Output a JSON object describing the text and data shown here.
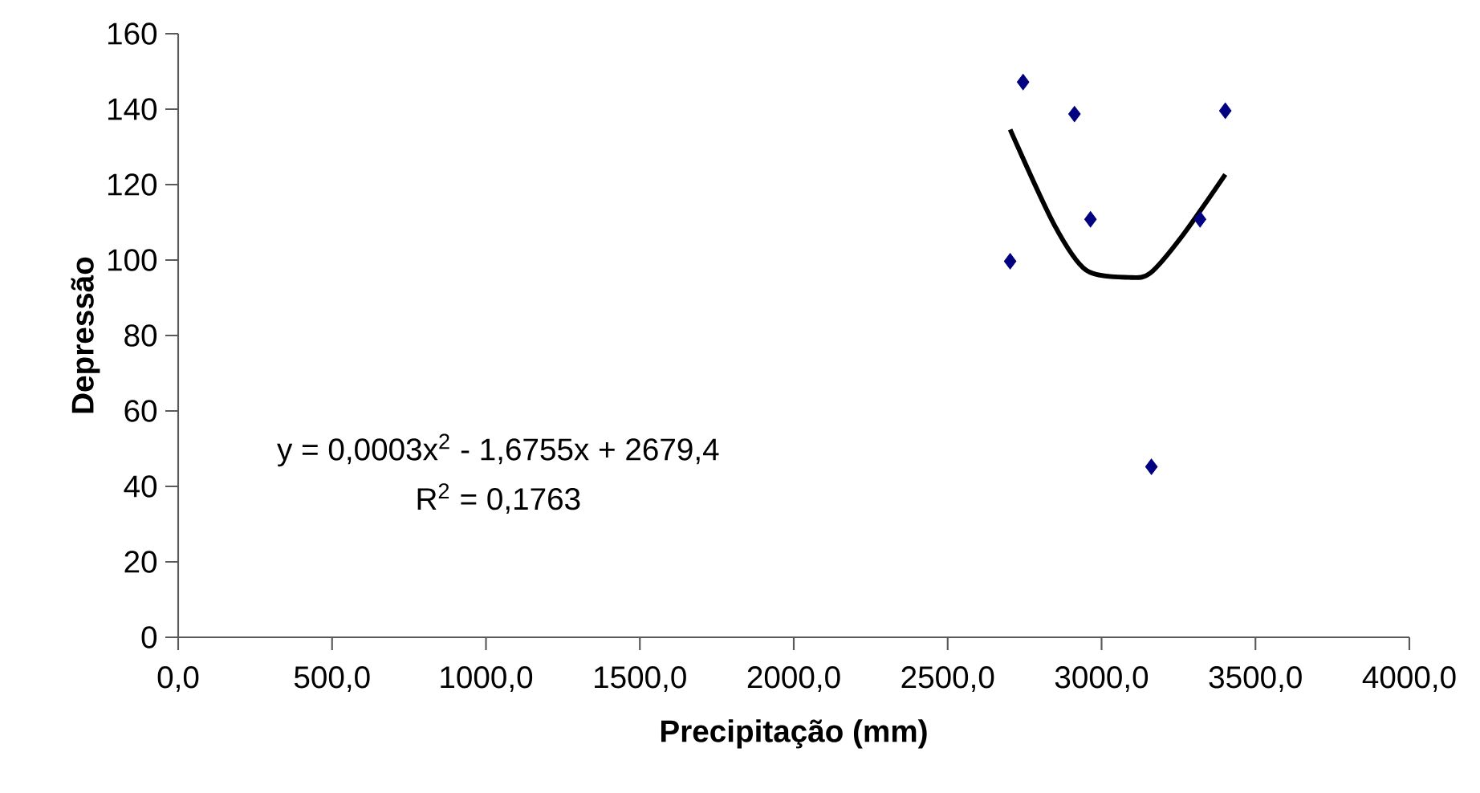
{
  "chart_data": {
    "type": "scatter",
    "xlabel": "Precipitação (mm)",
    "ylabel": "Depressão",
    "xlim": [
      0,
      4000
    ],
    "ylim": [
      0,
      160
    ],
    "xticks": [
      {
        "value": 0,
        "label": "0,0"
      },
      {
        "value": 500,
        "label": "500,0"
      },
      {
        "value": 1000,
        "label": "1000,0"
      },
      {
        "value": 1500,
        "label": "1500,0"
      },
      {
        "value": 2000,
        "label": "2000,0"
      },
      {
        "value": 2500,
        "label": "2500,0"
      },
      {
        "value": 3000,
        "label": "3000,0"
      },
      {
        "value": 3500,
        "label": "3500,0"
      },
      {
        "value": 4000,
        "label": "4000,0"
      }
    ],
    "yticks": [
      0,
      20,
      40,
      60,
      80,
      100,
      120,
      140,
      160
    ],
    "series": [
      {
        "color": "#000080",
        "marker": "diamond",
        "x": [
          2703,
          2745,
          2912,
          2964,
          3162,
          3320,
          3402
        ],
        "values": [
          99.7,
          147.2,
          138.7,
          110.8,
          45.2,
          110.8,
          139.6
        ]
      },
      {
        "type": "line",
        "color": "#000000",
        "marker": "none",
        "line_style": "solid",
        "x": [
          2703,
          2846,
          2950,
          3089,
          3159,
          3263,
          3402
        ],
        "values": [
          134.6,
          109.4,
          97.3,
          95.4,
          96.6,
          106.5,
          122.7
        ]
      }
    ],
    "annotations": [
      "y = 0,0003x$^{2}$ - 1,6755x + 2679,4",
      "R$^{2}$ = 0,1763"
    ]
  }
}
